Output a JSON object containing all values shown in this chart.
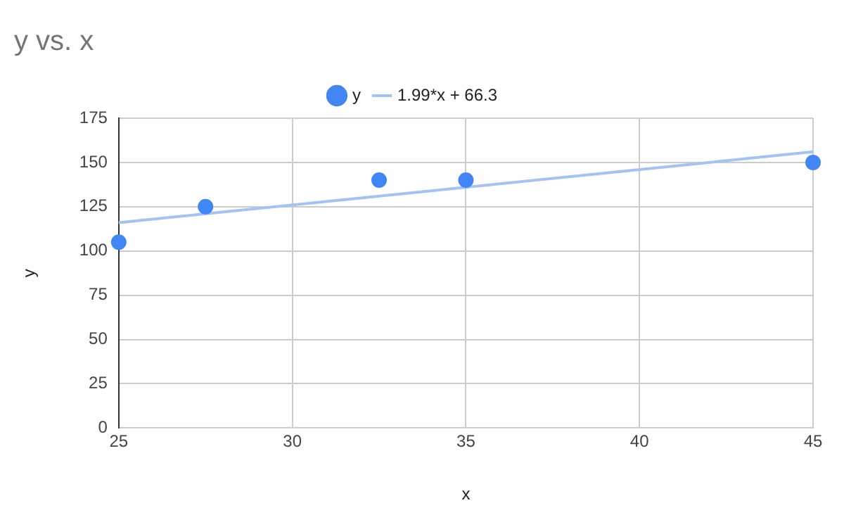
{
  "chart_data": {
    "type": "scatter",
    "title": "y vs. x",
    "xlabel": "x",
    "ylabel": "y",
    "series": [
      {
        "name": "y",
        "color": "#4285f4",
        "marker": "circle",
        "x": [
          25,
          27.5,
          32.5,
          35,
          45
        ],
        "values": [
          105,
          125,
          140,
          140,
          150
        ]
      },
      {
        "name": "1.99*x + 66.3",
        "type": "line",
        "color": "#a4c2f4",
        "marker": "none",
        "line_style": "solid",
        "x": [
          25,
          45
        ],
        "values": [
          116,
          156
        ]
      }
    ],
    "xlim": [
      25,
      45
    ],
    "xticks": [
      25,
      30,
      35,
      40,
      45
    ],
    "ylim": [
      0,
      175
    ],
    "yticks": [
      0,
      25,
      50,
      75,
      100,
      125,
      150,
      175
    ],
    "grid": true,
    "legend": "top"
  }
}
